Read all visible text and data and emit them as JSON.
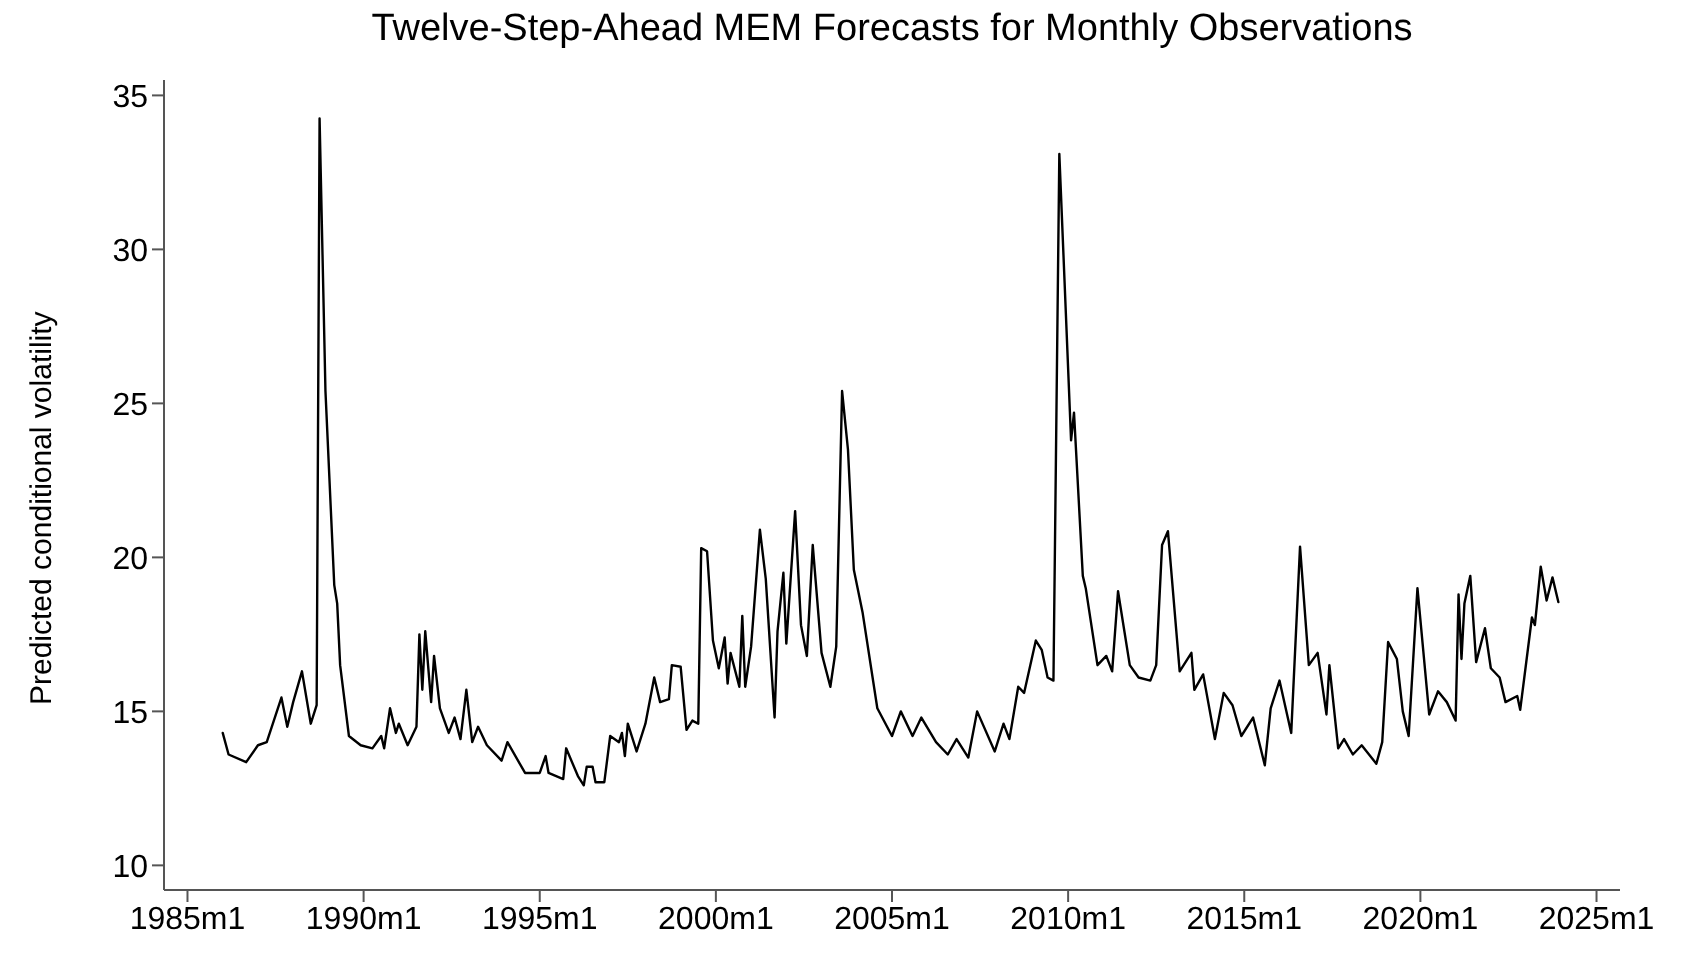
{
  "chart_data": {
    "type": "line",
    "title": "Twelve-Step-Ahead MEM Forecasts for Monthly Observations",
    "ylabel": "Predicted conditional volatility",
    "x": [
      "1986-01",
      "1986-03",
      "1986-09",
      "1987-01",
      "1987-04",
      "1987-09",
      "1987-11",
      "1988-01",
      "1988-04",
      "1988-07",
      "1988-09",
      "1988-10",
      "1988-12",
      "1989-03",
      "1989-04",
      "1989-05",
      "1989-08",
      "1989-12",
      "1990-04",
      "1990-07",
      "1990-08",
      "1990-10",
      "1990-12",
      "1991-01",
      "1991-04",
      "1991-07",
      "1991-08",
      "1991-09",
      "1991-10",
      "1991-12",
      "1992-01",
      "1992-03",
      "1992-06",
      "1992-08",
      "1992-10",
      "1992-12",
      "1993-02",
      "1993-04",
      "1993-07",
      "1993-12",
      "1994-02",
      "1994-08",
      "1995-01",
      "1995-03",
      "1995-04",
      "1995-09",
      "1995-10",
      "1996-02",
      "1996-04",
      "1996-05",
      "1996-07",
      "1996-08",
      "1996-11",
      "1997-01",
      "1997-04",
      "1997-05",
      "1997-06",
      "1997-07",
      "1997-10",
      "1998-01",
      "1998-04",
      "1998-06",
      "1998-09",
      "1998-10",
      "1999-01",
      "1999-03",
      "1999-05",
      "1999-07",
      "1999-08",
      "1999-10",
      "1999-12",
      "2000-02",
      "2000-04",
      "2000-05",
      "2000-06",
      "2000-09",
      "2000-10",
      "2000-11",
      "2001-01",
      "2001-04",
      "2001-06",
      "2001-09",
      "2001-10",
      "2001-12",
      "2002-01",
      "2002-04",
      "2002-06",
      "2002-08",
      "2002-10",
      "2003-01",
      "2003-04",
      "2003-06",
      "2003-08",
      "2003-10",
      "2003-12",
      "2004-03",
      "2004-08",
      "2005-01",
      "2005-04",
      "2005-08",
      "2005-11",
      "2006-04",
      "2006-08",
      "2006-11",
      "2007-03",
      "2007-06",
      "2007-12",
      "2008-03",
      "2008-05",
      "2008-08",
      "2008-10",
      "2009-02",
      "2009-04",
      "2009-06",
      "2009-08",
      "2009-10",
      "2010-02",
      "2010-03",
      "2010-06",
      "2010-07",
      "2010-11",
      "2011-02",
      "2011-04",
      "2011-06",
      "2011-08",
      "2011-10",
      "2012-01",
      "2012-05",
      "2012-07",
      "2012-09",
      "2012-11",
      "2013-03",
      "2013-07",
      "2013-08",
      "2013-11",
      "2014-03",
      "2014-06",
      "2014-09",
      "2014-12",
      "2015-04",
      "2015-08",
      "2015-10",
      "2016-01",
      "2016-05",
      "2016-08",
      "2016-11",
      "2017-02",
      "2017-05",
      "2017-06",
      "2017-09",
      "2017-11",
      "2018-02",
      "2018-05",
      "2018-10",
      "2018-12",
      "2019-02",
      "2019-05",
      "2019-07",
      "2019-09",
      "2019-12",
      "2020-04",
      "2020-07",
      "2020-10",
      "2021-01",
      "2021-02",
      "2021-03",
      "2021-04",
      "2021-06",
      "2021-08",
      "2021-11",
      "2022-01",
      "2022-04",
      "2022-06",
      "2022-10",
      "2022-11",
      "2023-03",
      "2023-04",
      "2023-06",
      "2023-08",
      "2023-10",
      "2023-12"
    ],
    "series": [
      {
        "color": "#000000",
        "values": [
          14.3,
          13.6,
          13.35,
          13.9,
          14.0,
          15.45,
          14.5,
          15.3,
          16.3,
          14.6,
          15.2,
          34.25,
          25.4,
          19.1,
          18.5,
          16.5,
          14.2,
          13.9,
          13.8,
          14.2,
          13.8,
          15.1,
          14.3,
          14.6,
          13.9,
          14.5,
          17.5,
          15.7,
          17.6,
          15.3,
          16.8,
          15.1,
          14.3,
          14.8,
          14.1,
          15.7,
          14.0,
          14.5,
          13.9,
          13.4,
          14.0,
          13.0,
          13.0,
          13.55,
          13.0,
          12.8,
          13.8,
          12.9,
          12.6,
          13.2,
          13.2,
          12.7,
          12.7,
          14.2,
          14.0,
          14.3,
          13.55,
          14.6,
          13.7,
          14.6,
          16.1,
          15.3,
          15.4,
          16.5,
          16.45,
          14.4,
          14.7,
          14.6,
          20.3,
          20.2,
          17.3,
          16.4,
          17.4,
          15.9,
          16.9,
          15.8,
          18.1,
          15.8,
          17.1,
          20.9,
          19.3,
          14.8,
          17.6,
          19.5,
          17.2,
          21.5,
          17.8,
          16.8,
          20.4,
          16.9,
          15.8,
          17.1,
          25.4,
          23.5,
          19.6,
          18.2,
          15.1,
          14.2,
          15.0,
          14.2,
          14.8,
          14.0,
          13.6,
          14.1,
          13.5,
          15.0,
          13.7,
          14.6,
          14.1,
          15.8,
          15.6,
          17.3,
          17.0,
          16.1,
          16.0,
          33.1,
          23.8,
          24.7,
          19.4,
          19.0,
          16.5,
          16.8,
          16.3,
          18.9,
          17.7,
          16.5,
          16.1,
          16.0,
          16.5,
          20.4,
          20.85,
          16.3,
          16.9,
          15.7,
          16.2,
          14.1,
          15.6,
          15.2,
          14.2,
          14.8,
          13.25,
          15.1,
          16.0,
          14.3,
          20.35,
          16.5,
          16.9,
          14.9,
          16.5,
          13.8,
          14.1,
          13.6,
          13.9,
          13.3,
          14.0,
          17.25,
          16.7,
          15.0,
          14.2,
          19.0,
          14.9,
          15.65,
          15.3,
          14.7,
          18.8,
          16.7,
          18.5,
          19.4,
          16.6,
          17.7,
          16.4,
          16.1,
          15.3,
          15.5,
          15.05,
          18.05,
          17.8,
          19.7,
          18.6,
          19.35,
          18.55
        ]
      }
    ],
    "xlim": [
      "1984-05",
      "2025-09"
    ],
    "xticks": [
      {
        "value": "1985-01",
        "label": "1985m1"
      },
      {
        "value": "1990-01",
        "label": "1990m1"
      },
      {
        "value": "1995-01",
        "label": "1995m1"
      },
      {
        "value": "2000-01",
        "label": "2000m1"
      },
      {
        "value": "2005-01",
        "label": "2005m1"
      },
      {
        "value": "2010-01",
        "label": "2010m1"
      },
      {
        "value": "2015-01",
        "label": "2015m1"
      },
      {
        "value": "2020-01",
        "label": "2020m1"
      },
      {
        "value": "2025-01",
        "label": "2025m1"
      }
    ],
    "ylim": [
      9.2,
      35.5
    ],
    "yticks": [
      10,
      15,
      20,
      25,
      30,
      35
    ],
    "grid": false,
    "marker": "none",
    "line_style": "solid"
  }
}
